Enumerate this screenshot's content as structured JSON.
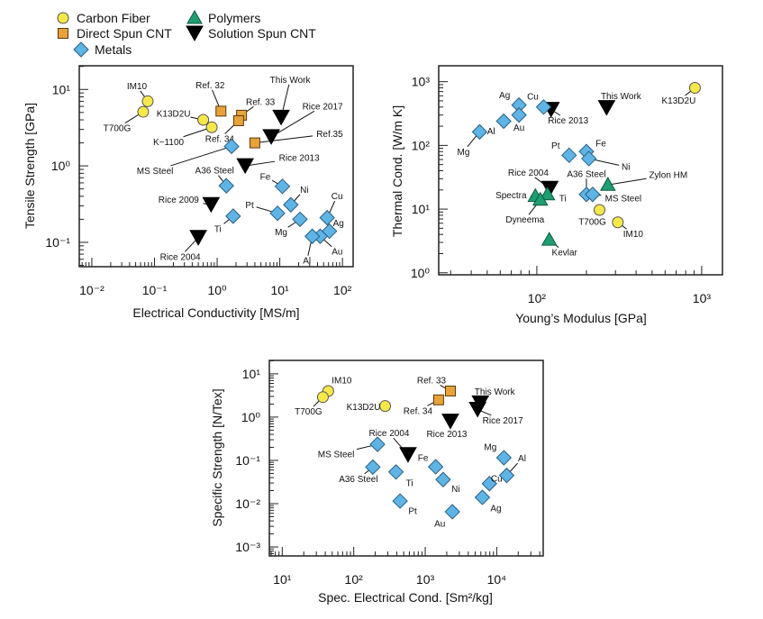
{
  "legend": {
    "placement": "top-left",
    "items": [
      {
        "name": "Carbon Fiber",
        "group": "cf",
        "marker": "circle",
        "color": "#f7e84a"
      },
      {
        "name": "Direct Spun CNT",
        "group": "ds",
        "marker": "square",
        "color": "#e8a23a"
      },
      {
        "name": "Metals",
        "group": "metal",
        "marker": "diamond",
        "color": "#5fb4e6"
      },
      {
        "name": "Polymers",
        "group": "poly",
        "marker": "triangle-up",
        "color": "#1f9e72"
      },
      {
        "name": "Solution Spun CNT",
        "group": "ss",
        "marker": "triangle-down",
        "color": "#000000"
      }
    ]
  },
  "chart_data": [
    {
      "type": "scatter",
      "xlabel": "Electrical Conductivity [MS/m]",
      "ylabel": "Tensile Strength [GPa]",
      "xscale": "log",
      "yscale": "log",
      "xlim": [
        0.0063,
        148
      ],
      "ylim": [
        0.048,
        20.4
      ],
      "xticks": [
        {
          "value": 0.01,
          "label": "10⁻²"
        },
        {
          "value": 0.1,
          "label": "10⁻¹"
        },
        {
          "value": 1,
          "label": "10⁰"
        },
        {
          "value": 10,
          "label": "10¹"
        },
        {
          "value": 100,
          "label": "10²"
        }
      ],
      "yticks": [
        {
          "value": 0.1,
          "label": "10⁻¹"
        },
        {
          "value": 1,
          "label": "10⁰"
        },
        {
          "value": 10,
          "label": "10¹"
        }
      ],
      "grid": false,
      "points": [
        {
          "label": "IM10",
          "group": "cf",
          "x": 0.078,
          "y": 7.0
        },
        {
          "label": "T700G",
          "group": "cf",
          "x": 0.066,
          "y": 5.1
        },
        {
          "label": "K13D2U",
          "group": "cf",
          "x": 0.6,
          "y": 4.0
        },
        {
          "label": "K−1100",
          "group": "cf",
          "x": 0.82,
          "y": 3.2
        },
        {
          "label": "Ref. 32",
          "group": "ds",
          "x": 1.15,
          "y": 5.2
        },
        {
          "label": "Ref. 33",
          "group": "ds",
          "x": 2.45,
          "y": 4.6
        },
        {
          "label": "Ref. 34",
          "group": "ds",
          "x": 2.2,
          "y": 3.9
        },
        {
          "label": "Ref.35",
          "group": "ds",
          "x": 4.0,
          "y": 2.0
        },
        {
          "label": "This Work",
          "group": "ss",
          "x": 10.5,
          "y": 4.3
        },
        {
          "label": "Rice 2017",
          "group": "ss",
          "x": 7.3,
          "y": 2.4
        },
        {
          "label": "Rice 2013",
          "group": "ss",
          "x": 2.8,
          "y": 1.0
        },
        {
          "label": "Rice 2009",
          "group": "ss",
          "x": 0.8,
          "y": 0.31
        },
        {
          "label": "Rice 2004",
          "group": "ss",
          "x": 0.5,
          "y": 0.115
        },
        {
          "label": "MS Steel",
          "group": "metal",
          "x": 1.7,
          "y": 1.8
        },
        {
          "label": "A36 Steel",
          "group": "metal",
          "x": 1.4,
          "y": 0.55
        },
        {
          "label": "Ti",
          "group": "metal",
          "x": 1.8,
          "y": 0.22
        },
        {
          "label": "Fe",
          "group": "metal",
          "x": 11,
          "y": 0.54
        },
        {
          "label": "Ni",
          "group": "metal",
          "x": 15,
          "y": 0.31
        },
        {
          "label": "Pt",
          "group": "metal",
          "x": 9.2,
          "y": 0.24
        },
        {
          "label": "Mg",
          "group": "metal",
          "x": 21,
          "y": 0.2
        },
        {
          "label": "Cu",
          "group": "metal",
          "x": 57,
          "y": 0.21
        },
        {
          "label": "Ag",
          "group": "metal",
          "x": 62,
          "y": 0.14
        },
        {
          "label": "Au",
          "group": "metal",
          "x": 44,
          "y": 0.12
        },
        {
          "label": "Al",
          "group": "metal",
          "x": 33,
          "y": 0.12
        }
      ]
    },
    {
      "type": "scatter",
      "xlabel": "Young’s Modulus [GPa]",
      "ylabel": "Thermal Cond. [W/m K]",
      "xscale": "log",
      "yscale": "log",
      "xlim": [
        25.4,
        1337
      ],
      "ylim": [
        0.93,
        1778
      ],
      "xticks": [
        {
          "value": 100,
          "label": "10²"
        },
        {
          "value": 1000,
          "label": "10³"
        }
      ],
      "yticks": [
        {
          "value": 1,
          "label": "10⁰"
        },
        {
          "value": 10,
          "label": "10¹"
        },
        {
          "value": 100,
          "label": "10²"
        },
        {
          "value": 1000,
          "label": "10³"
        }
      ],
      "grid": false,
      "points": [
        {
          "label": "K13D2U",
          "group": "cf",
          "x": 910,
          "y": 800
        },
        {
          "label": "This Work",
          "group": "ss",
          "x": 265,
          "y": 390
        },
        {
          "label": "Rice 2013",
          "group": "ss",
          "x": 122,
          "y": 365
        },
        {
          "label": "Cu",
          "group": "metal",
          "x": 110,
          "y": 400
        },
        {
          "label": "Ag",
          "group": "metal",
          "x": 78,
          "y": 430
        },
        {
          "label": "Au",
          "group": "metal",
          "x": 78,
          "y": 300
        },
        {
          "label": "Al",
          "group": "metal",
          "x": 63,
          "y": 240
        },
        {
          "label": "Mg",
          "group": "metal",
          "x": 45,
          "y": 163
        },
        {
          "label": "Pt",
          "group": "metal",
          "x": 157,
          "y": 70
        },
        {
          "label": "Fe",
          "group": "metal",
          "x": 200,
          "y": 80
        },
        {
          "label": "Ni",
          "group": "metal",
          "x": 207,
          "y": 62
        },
        {
          "label": "A36 Steel",
          "group": "metal",
          "x": 200,
          "y": 17
        },
        {
          "label": "MS Steel",
          "group": "metal",
          "x": 218,
          "y": 17
        },
        {
          "label": "Zylon HM",
          "group": "poly",
          "x": 270,
          "y": 24
        },
        {
          "label": "Rice 2004",
          "group": "ss",
          "x": 120,
          "y": 21
        },
        {
          "label": "Ti",
          "group": "poly",
          "x": 116,
          "y": 17
        },
        {
          "label": "Spectra",
          "group": "poly",
          "x": 98,
          "y": 16
        },
        {
          "label": "Dyneema",
          "group": "poly",
          "x": 105,
          "y": 14
        },
        {
          "label": "T700G",
          "group": "cf",
          "x": 240,
          "y": 9.7
        },
        {
          "label": "IM10",
          "group": "cf",
          "x": 310,
          "y": 6.2
        },
        {
          "label": "Kevlar",
          "group": "poly",
          "x": 119,
          "y": 3.3
        }
      ]
    },
    {
      "type": "scatter",
      "xlabel": "Spec. Electrical Cond. [Sm²/kg]",
      "ylabel": "Specific Strength [N/Tex]",
      "xscale": "log",
      "yscale": "log",
      "xlim": [
        6.6,
        44700
      ],
      "ylim": [
        0.00062,
        20.4
      ],
      "xticks": [
        {
          "value": 10,
          "label": "10¹"
        },
        {
          "value": 100,
          "label": "10²"
        },
        {
          "value": 1000,
          "label": "10³"
        },
        {
          "value": 10000,
          "label": "10⁴"
        }
      ],
      "yticks": [
        {
          "value": 0.001,
          "label": "10⁻³"
        },
        {
          "value": 0.01,
          "label": "10⁻²"
        },
        {
          "value": 0.1,
          "label": "10⁻¹"
        },
        {
          "value": 1,
          "label": "10⁰"
        },
        {
          "value": 10,
          "label": "10¹"
        }
      ],
      "grid": false,
      "points": [
        {
          "label": "IM10",
          "group": "cf",
          "x": 44,
          "y": 4.0
        },
        {
          "label": "T700G",
          "group": "cf",
          "x": 37,
          "y": 2.9
        },
        {
          "label": "K13D2U",
          "group": "cf",
          "x": 275,
          "y": 1.8
        },
        {
          "label": "Ref. 33",
          "group": "ds",
          "x": 2250,
          "y": 4.0
        },
        {
          "label": "Ref. 34",
          "group": "ds",
          "x": 1540,
          "y": 2.5
        },
        {
          "label": "This Work",
          "group": "ss",
          "x": 5900,
          "y": 2.1
        },
        {
          "label": "Rice 2017",
          "group": "ss",
          "x": 5400,
          "y": 1.5
        },
        {
          "label": "Rice 2013",
          "group": "ss",
          "x": 2250,
          "y": 0.8
        },
        {
          "label": "Rice 2004",
          "group": "ss",
          "x": 575,
          "y": 0.135
        },
        {
          "label": "MS Steel",
          "group": "metal",
          "x": 215,
          "y": 0.235
        },
        {
          "label": "A36 Steel",
          "group": "metal",
          "x": 185,
          "y": 0.07
        },
        {
          "label": "Ti",
          "group": "metal",
          "x": 390,
          "y": 0.054
        },
        {
          "label": "Pt",
          "group": "metal",
          "x": 445,
          "y": 0.0115
        },
        {
          "label": "Fe",
          "group": "metal",
          "x": 1400,
          "y": 0.071
        },
        {
          "label": "Ni",
          "group": "metal",
          "x": 1780,
          "y": 0.036
        },
        {
          "label": "Au",
          "group": "metal",
          "x": 2400,
          "y": 0.0065
        },
        {
          "label": "Ag",
          "group": "metal",
          "x": 6300,
          "y": 0.014
        },
        {
          "label": "Cu",
          "group": "metal",
          "x": 7900,
          "y": 0.029
        },
        {
          "label": "Al",
          "group": "metal",
          "x": 13800,
          "y": 0.045
        },
        {
          "label": "Mg",
          "group": "metal",
          "x": 12600,
          "y": 0.115
        }
      ]
    }
  ]
}
